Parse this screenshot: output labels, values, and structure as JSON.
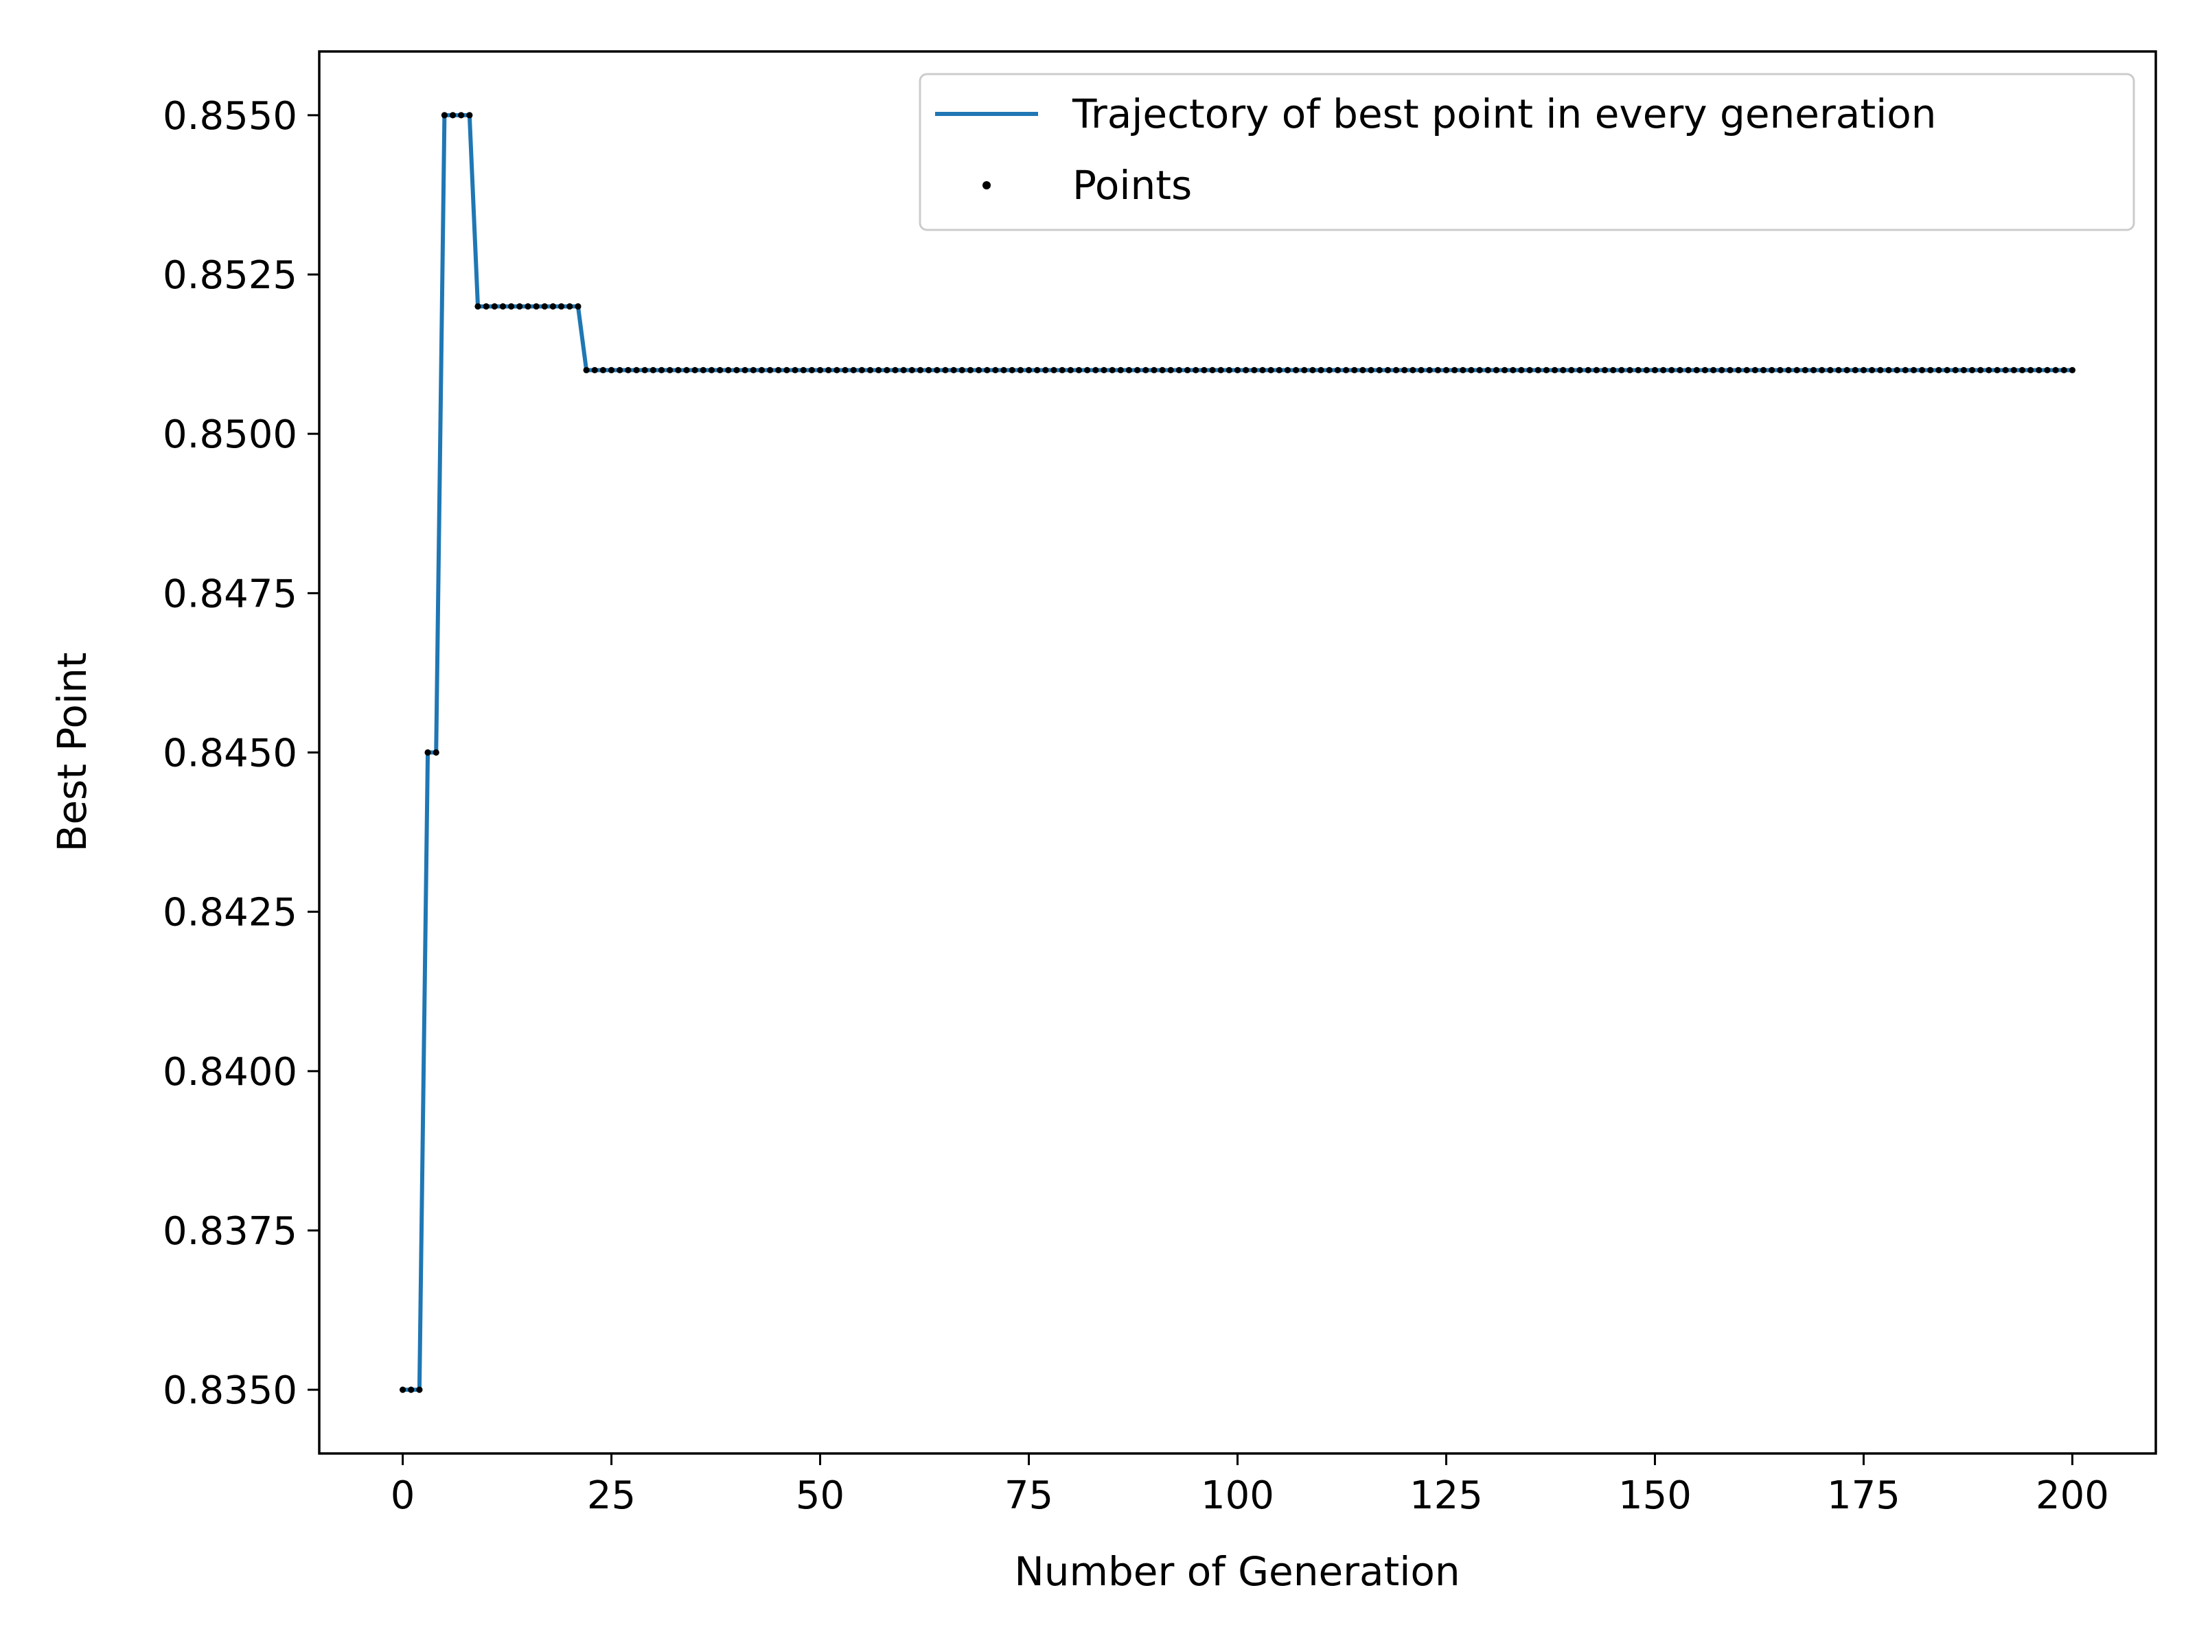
{
  "chart_data": {
    "type": "line",
    "title": "",
    "xlabel": "Number of Generation",
    "ylabel": "Best Point",
    "xlim": [
      -10,
      210
    ],
    "ylim": [
      0.834,
      0.856
    ],
    "xticks": [
      0,
      25,
      50,
      75,
      100,
      125,
      150,
      175,
      200
    ],
    "xtick_labels": [
      "0",
      "25",
      "50",
      "75",
      "100",
      "125",
      "150",
      "175",
      "200"
    ],
    "yticks": [
      0.835,
      0.8375,
      0.84,
      0.8425,
      0.845,
      0.8475,
      0.85,
      0.8525,
      0.855
    ],
    "ytick_labels": [
      "0.8350",
      "0.8375",
      "0.8400",
      "0.8425",
      "0.8450",
      "0.8475",
      "0.8500",
      "0.8525",
      "0.8550"
    ],
    "grid": false,
    "legend_position": "top-right",
    "colors": {
      "line": "#1f77b4",
      "points": "#000000"
    },
    "series": [
      {
        "name": "Trajectory of best point in every generation",
        "style": "line",
        "segments": [
          {
            "x_from": 0,
            "x_to": 2,
            "y": 0.835
          },
          {
            "x_from": 3,
            "x_to": 4,
            "y": 0.845
          },
          {
            "x_from": 5,
            "x_to": 8,
            "y": 0.855
          },
          {
            "x_from": 9,
            "x_to": 21,
            "y": 0.852
          },
          {
            "x_from": 22,
            "x_to": 200,
            "y": 0.851
          }
        ]
      },
      {
        "name": "Points",
        "style": "markers",
        "same_as": "Trajectory of best point in every generation"
      }
    ]
  }
}
